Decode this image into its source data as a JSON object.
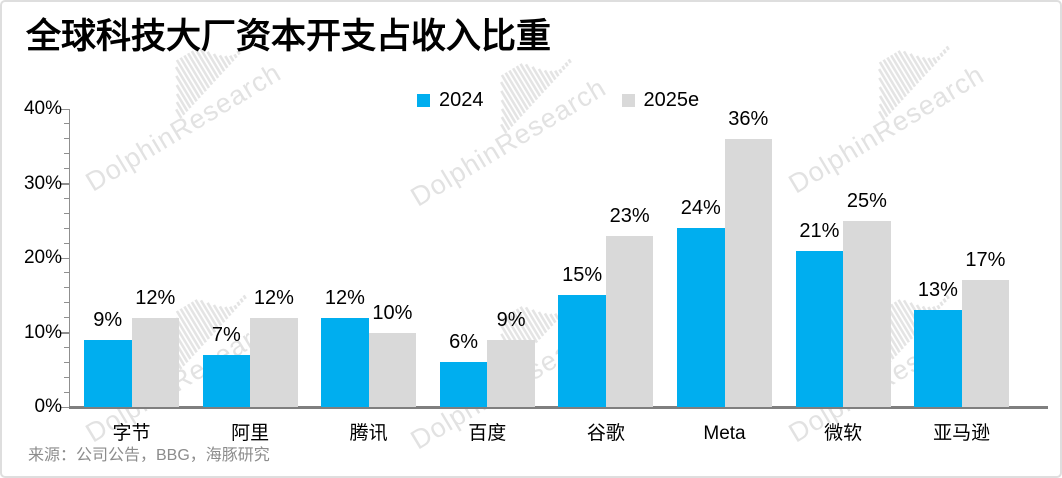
{
  "title": "全球科技大厂资本开支占收入比重",
  "source_note": "来源：公司公告，BBG，海豚研究",
  "watermark_text": "DolphinResearch",
  "colors": {
    "series_2024": "#00AEEF",
    "series_2025e": "#D9D9D9",
    "axis": "#808080",
    "title_text": "#000000",
    "source_text": "#8C8C8C",
    "watermark": "#E2E2E2"
  },
  "legend": {
    "items": [
      {
        "label": "2024",
        "color": "#00AEEF"
      },
      {
        "label": "2025e",
        "color": "#D9D9D9"
      }
    ]
  },
  "chart_data": {
    "type": "bar",
    "title": "全球科技大厂资本开支占收入比重",
    "categories": [
      "字节",
      "阿里",
      "腾讯",
      "百度",
      "谷歌",
      "Meta",
      "微软",
      "亚马逊"
    ],
    "series": [
      {
        "name": "2024",
        "color": "#00AEEF",
        "values": [
          9,
          7,
          12,
          6,
          15,
          24,
          21,
          13
        ]
      },
      {
        "name": "2025e",
        "color": "#D9D9D9",
        "values": [
          12,
          12,
          10,
          9,
          23,
          36,
          25,
          17
        ]
      }
    ],
    "value_suffix": "%",
    "data_labels": true,
    "xlabel": "",
    "ylabel": "",
    "ylim": [
      0,
      40
    ],
    "ytick_values": [
      0,
      10,
      20,
      30,
      40
    ],
    "ytick_labels": [
      "0%",
      "10%",
      "20%",
      "30%",
      "40%"
    ],
    "minor_tick_step": 2,
    "grid": false,
    "legend_position": "top-center"
  }
}
